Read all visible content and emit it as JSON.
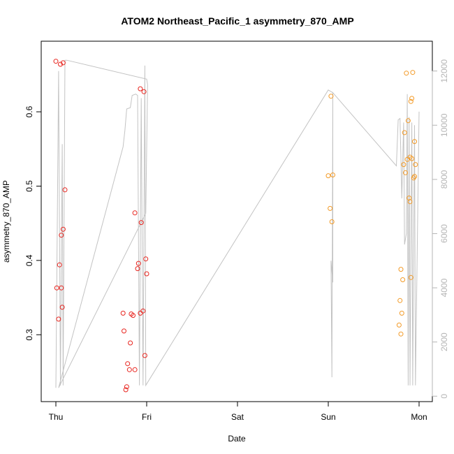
{
  "chart_data": {
    "type": "scatter",
    "title": "ATOM2 Northeast_Pacific_1 asymmetry_870_AMP",
    "xlabel": "Date",
    "ylabel": "asymmetry_870_AMP",
    "x_ticks": [
      "Thu",
      "Fri",
      "Sat",
      "Sun",
      "Mon"
    ],
    "x_range_days": [
      0,
      4
    ],
    "y_ticks": [
      "0.3",
      "0.4",
      "0.5",
      "0.6"
    ],
    "ylim": [
      0.21,
      0.695
    ],
    "y2_ticks": [
      "0",
      "2000",
      "4000",
      "6000",
      "8000",
      "10000",
      "12000"
    ],
    "y2lim": [
      -200,
      13100
    ],
    "grid": false,
    "colors": {
      "red_series": "#e8251f",
      "orange_series": "#f39a26",
      "altitude_line": "#c3c3c3",
      "axis": "#000000",
      "right_axis": "#b5b5b5"
    },
    "series": [
      {
        "color": "#e8251f",
        "points": [
          [
            0.0,
            0.668
          ],
          [
            0.05,
            0.664
          ],
          [
            0.08,
            0.666
          ],
          [
            0.1,
            0.495
          ],
          [
            0.08,
            0.442
          ],
          [
            0.06,
            0.434
          ],
          [
            0.04,
            0.394
          ],
          [
            0.01,
            0.363
          ],
          [
            0.06,
            0.363
          ],
          [
            0.07,
            0.337
          ],
          [
            0.03,
            0.321
          ],
          [
            0.93,
            0.631
          ],
          [
            0.97,
            0.627
          ],
          [
            0.87,
            0.464
          ],
          [
            0.94,
            0.451
          ],
          [
            0.99,
            0.402
          ],
          [
            0.91,
            0.396
          ],
          [
            0.9,
            0.389
          ],
          [
            1.0,
            0.382
          ],
          [
            0.96,
            0.332
          ],
          [
            0.74,
            0.329
          ],
          [
            0.83,
            0.328
          ],
          [
            0.93,
            0.329
          ],
          [
            0.85,
            0.326
          ],
          [
            0.75,
            0.305
          ],
          [
            0.82,
            0.289
          ],
          [
            0.98,
            0.272
          ],
          [
            0.79,
            0.261
          ],
          [
            0.81,
            0.253
          ],
          [
            0.87,
            0.253
          ],
          [
            0.78,
            0.23
          ],
          [
            0.77,
            0.226
          ]
        ]
      },
      {
        "color": "#f39a26",
        "points": [
          [
            3.03,
            0.621
          ],
          [
            3.0,
            0.514
          ],
          [
            3.05,
            0.515
          ],
          [
            3.02,
            0.47
          ],
          [
            3.04,
            0.452
          ],
          [
            3.86,
            0.652
          ],
          [
            3.93,
            0.653
          ],
          [
            3.92,
            0.618
          ],
          [
            3.91,
            0.614
          ],
          [
            3.88,
            0.588
          ],
          [
            3.84,
            0.572
          ],
          [
            3.95,
            0.56
          ],
          [
            3.9,
            0.539
          ],
          [
            3.87,
            0.536
          ],
          [
            3.92,
            0.537
          ],
          [
            3.83,
            0.529
          ],
          [
            3.96,
            0.529
          ],
          [
            3.85,
            0.518
          ],
          [
            3.95,
            0.513
          ],
          [
            3.94,
            0.511
          ],
          [
            3.89,
            0.484
          ],
          [
            3.9,
            0.479
          ],
          [
            3.8,
            0.388
          ],
          [
            3.91,
            0.377
          ],
          [
            3.82,
            0.374
          ],
          [
            3.79,
            0.346
          ],
          [
            3.81,
            0.329
          ],
          [
            3.78,
            0.313
          ],
          [
            3.8,
            0.301
          ]
        ]
      }
    ],
    "secondary_line": {
      "name": "",
      "points": [
        [
          0.0,
          310
        ],
        [
          0.03,
          12000
        ],
        [
          0.05,
          400
        ],
        [
          0.07,
          9300
        ],
        [
          0.08,
          400
        ],
        [
          0.1,
          12400
        ],
        [
          0.12,
          12400
        ],
        [
          1.0,
          11700
        ],
        [
          1.01,
          11500
        ],
        [
          0.99,
          6750
        ],
        [
          0.03,
          310
        ],
        [
          0.74,
          9200
        ],
        [
          0.76,
          9800
        ],
        [
          0.78,
          10600
        ],
        [
          0.82,
          10650
        ],
        [
          0.84,
          11100
        ],
        [
          0.88,
          11150
        ],
        [
          0.9,
          11100
        ],
        [
          0.92,
          400
        ],
        [
          0.94,
          11000
        ],
        [
          0.96,
          400
        ],
        [
          0.98,
          12200
        ],
        [
          0.99,
          400
        ],
        [
          3.0,
          11300
        ],
        [
          3.05,
          11200
        ],
        [
          3.04,
          700
        ],
        [
          3.03,
          5000
        ],
        [
          3.05,
          4200
        ],
        [
          3.05,
          11200
        ],
        [
          3.75,
          8500
        ],
        [
          3.77,
          10200
        ],
        [
          3.79,
          10250
        ],
        [
          3.81,
          7300
        ],
        [
          3.83,
          10100
        ],
        [
          3.84,
          5600
        ],
        [
          3.86,
          6000
        ],
        [
          3.87,
          11150
        ],
        [
          3.88,
          400
        ],
        [
          3.89,
          10300
        ],
        [
          3.9,
          400
        ],
        [
          3.92,
          10100
        ],
        [
          3.93,
          400
        ],
        [
          3.95,
          10000
        ],
        [
          3.96,
          400
        ],
        [
          4.0,
          10500
        ]
      ]
    }
  }
}
